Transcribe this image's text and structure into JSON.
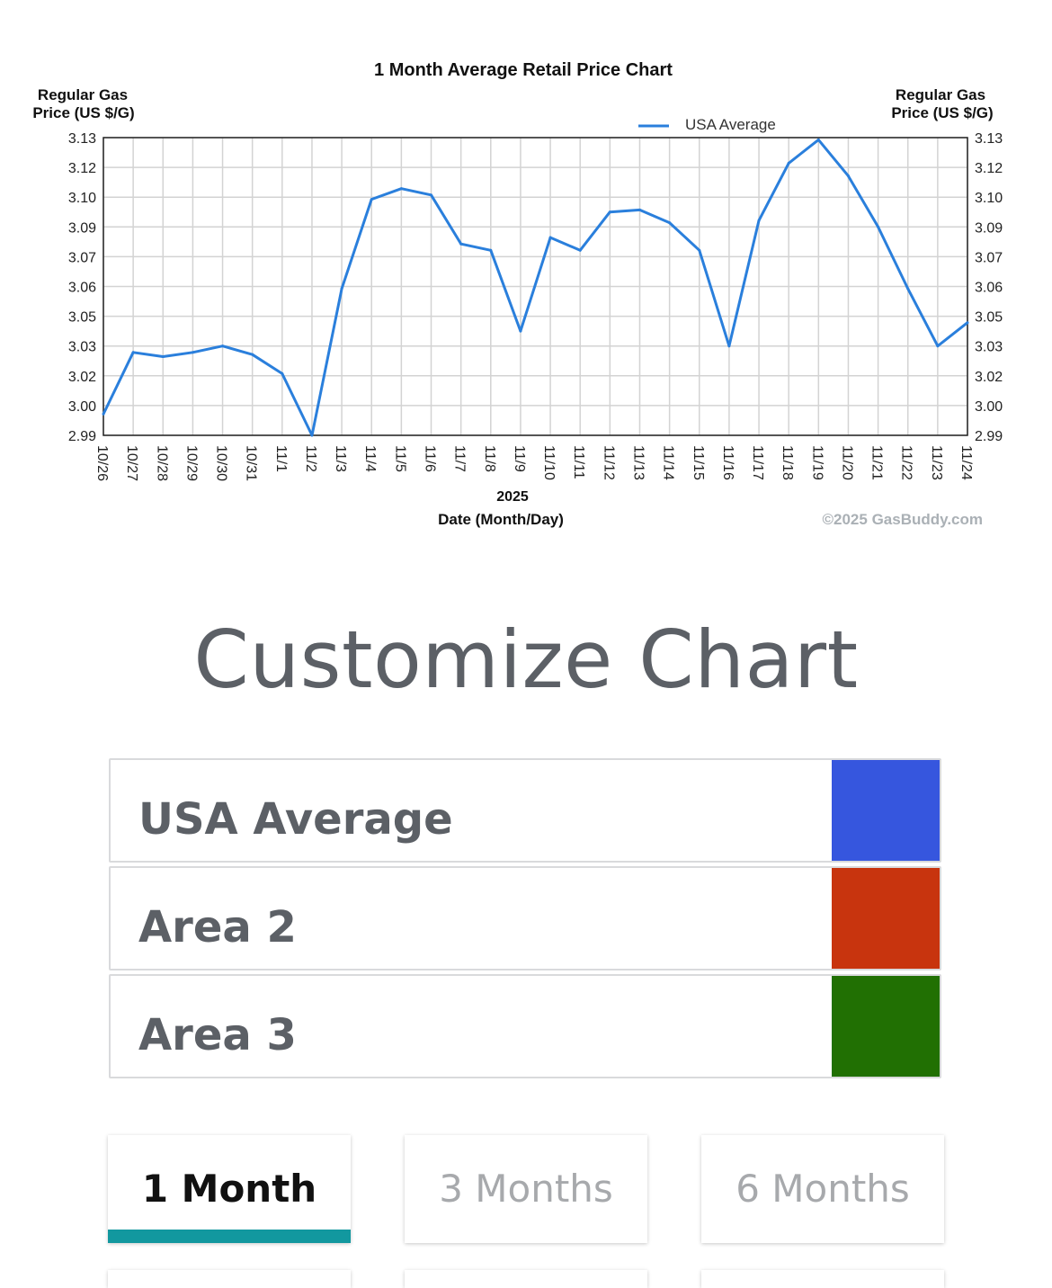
{
  "chart_data": {
    "type": "line",
    "title": "1 Month Average Retail Price Chart",
    "ylabel_left": [
      "Regular Gas",
      "Price (US $/G)"
    ],
    "ylabel_right": [
      "Regular Gas",
      "Price (US $/G)"
    ],
    "xlabel_year": "2025",
    "xlabel": "Date (Month/Day)",
    "copyright": "©2025 GasBuddy.com",
    "legend": {
      "position": "top-right",
      "label": "USA Average"
    },
    "y_ticks": [
      "2.99",
      "3.00",
      "3.02",
      "3.03",
      "3.05",
      "3.06",
      "3.07",
      "3.09",
      "3.10",
      "3.12",
      "3.13"
    ],
    "ylim": [
      2.99,
      3.13
    ],
    "grid": true,
    "categories": [
      "10/26",
      "10/27",
      "10/28",
      "10/29",
      "10/30",
      "10/31",
      "11/1",
      "11/2",
      "11/3",
      "11/4",
      "11/5",
      "11/6",
      "11/7",
      "11/8",
      "11/9",
      "11/10",
      "11/11",
      "11/12",
      "11/13",
      "11/14",
      "11/15",
      "11/16",
      "11/17",
      "11/18",
      "11/19",
      "11/20",
      "11/21",
      "11/22",
      "11/23",
      "11/24"
    ],
    "series": [
      {
        "name": "USA Average",
        "color": "#2a7fdc",
        "values": [
          3.0,
          3.029,
          3.027,
          3.029,
          3.032,
          3.028,
          3.019,
          2.99,
          3.059,
          3.101,
          3.106,
          3.103,
          3.08,
          3.077,
          3.039,
          3.083,
          3.077,
          3.095,
          3.096,
          3.09,
          3.077,
          3.032,
          3.091,
          3.118,
          3.129,
          3.112,
          3.088,
          3.059,
          3.032,
          3.043
        ]
      }
    ]
  },
  "customize": {
    "heading": "Customize Chart",
    "areas": [
      {
        "label": "USA Average",
        "color": "#3656de"
      },
      {
        "label": "Area 2",
        "color": "#c8340e"
      },
      {
        "label": "Area 3",
        "color": "#217003"
      }
    ]
  },
  "periods": [
    {
      "label": "1 Month",
      "active": true,
      "indicator_color": "#12989f"
    },
    {
      "label": "3 Months",
      "active": false
    },
    {
      "label": "6 Months",
      "active": false
    }
  ]
}
